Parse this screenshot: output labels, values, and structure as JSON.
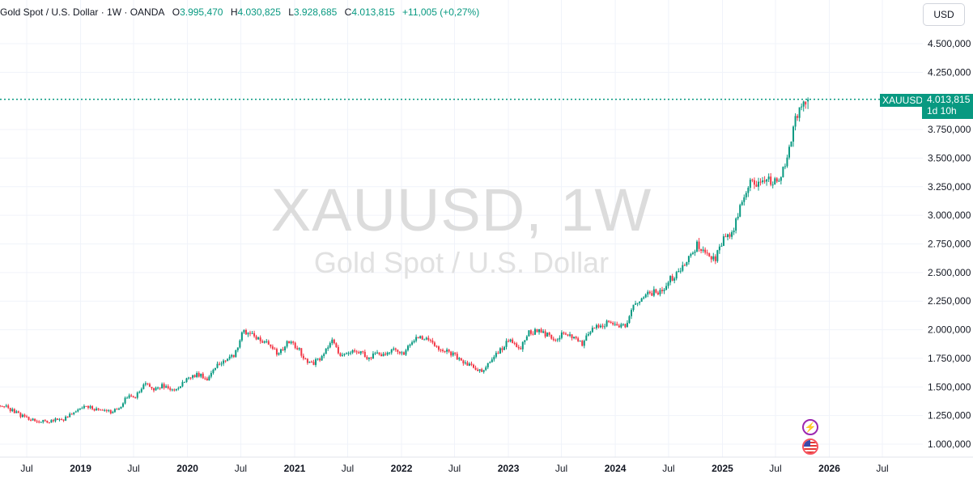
{
  "legend": {
    "symbol": "Gold Spot / U.S. Dollar · 1W · OANDA",
    "open_label": "O",
    "open": "3.995,470",
    "high_label": "H",
    "high": "4.030,825",
    "low_label": "L",
    "low": "3.928,685",
    "close_label": "C",
    "close": "4.013,815",
    "change": "+11,005 (+0,27%)"
  },
  "currency_button": "USD",
  "watermark": {
    "title": "XAUUSD, 1W",
    "subtitle": "Gold Spot / U.S. Dollar"
  },
  "price_label": {
    "symbol": "XAUUSD",
    "price": "4.013,815",
    "countdown": "1d 10h"
  },
  "colors": {
    "up": "#089981",
    "down": "#f23645",
    "grid": "#f0f3fa"
  },
  "icons": [
    "flash-icon",
    "us-flag-icon"
  ],
  "chart_data": {
    "type": "candlestick",
    "interval": "1W",
    "y_ticks": [
      1000000,
      1250000,
      1500000,
      1750000,
      2000000,
      2250000,
      2500000,
      2750000,
      3000000,
      3250000,
      3500000,
      3750000,
      4250000,
      4500000
    ],
    "y_tick_labels": [
      "1.000,000",
      "1.250,000",
      "1.500,000",
      "1.750,000",
      "2.000,000",
      "2.250,000",
      "2.500,000",
      "2.750,000",
      "3.000,000",
      "3.250,000",
      "3.500,000",
      "3.750,000",
      "4.250,000",
      "4.500,000"
    ],
    "ylim": [
      900000,
      4600000
    ],
    "x_ticks": [
      "Jul",
      "2019",
      "Jul",
      "2020",
      "Jul",
      "2021",
      "Jul",
      "2022",
      "Jul",
      "2023",
      "Jul",
      "2024",
      "Jul",
      "2025",
      "Jul",
      "2026",
      "Jul"
    ],
    "x_tick_dates": [
      "2018-07-01",
      "2019-01-01",
      "2019-07-01",
      "2020-01-01",
      "2020-07-01",
      "2021-01-01",
      "2021-07-01",
      "2022-01-01",
      "2022-07-01",
      "2023-01-01",
      "2023-07-01",
      "2024-01-01",
      "2024-07-01",
      "2025-01-01",
      "2025-07-01",
      "2026-01-01",
      "2026-07-01"
    ],
    "last_price": 4013815,
    "series": [
      {
        "date": "2018-04",
        "close": 1340000
      },
      {
        "date": "2018-05",
        "close": 1300000
      },
      {
        "date": "2018-06",
        "close": 1255000
      },
      {
        "date": "2018-07",
        "close": 1225000
      },
      {
        "date": "2018-08",
        "close": 1200000
      },
      {
        "date": "2018-09",
        "close": 1195000
      },
      {
        "date": "2018-10",
        "close": 1215000
      },
      {
        "date": "2018-11",
        "close": 1220000
      },
      {
        "date": "2018-12",
        "close": 1280000
      },
      {
        "date": "2019-01",
        "close": 1320000
      },
      {
        "date": "2019-02",
        "close": 1315000
      },
      {
        "date": "2019-03",
        "close": 1295000
      },
      {
        "date": "2019-04",
        "close": 1280000
      },
      {
        "date": "2019-05",
        "close": 1300000
      },
      {
        "date": "2019-06",
        "close": 1410000
      },
      {
        "date": "2019-07",
        "close": 1420000
      },
      {
        "date": "2019-08",
        "close": 1525000
      },
      {
        "date": "2019-09",
        "close": 1480000
      },
      {
        "date": "2019-10",
        "close": 1510000
      },
      {
        "date": "2019-11",
        "close": 1465000
      },
      {
        "date": "2019-12",
        "close": 1515000
      },
      {
        "date": "2020-01",
        "close": 1585000
      },
      {
        "date": "2020-02",
        "close": 1610000
      },
      {
        "date": "2020-03",
        "close": 1575000
      },
      {
        "date": "2020-04",
        "close": 1690000
      },
      {
        "date": "2020-05",
        "close": 1730000
      },
      {
        "date": "2020-06",
        "close": 1780000
      },
      {
        "date": "2020-07",
        "close": 1980000
      },
      {
        "date": "2020-08",
        "close": 1970000
      },
      {
        "date": "2020-09",
        "close": 1885000
      },
      {
        "date": "2020-10",
        "close": 1880000
      },
      {
        "date": "2020-11",
        "close": 1780000
      },
      {
        "date": "2020-12",
        "close": 1895000
      },
      {
        "date": "2021-01",
        "close": 1850000
      },
      {
        "date": "2021-02",
        "close": 1735000
      },
      {
        "date": "2021-03",
        "close": 1710000
      },
      {
        "date": "2021-04",
        "close": 1770000
      },
      {
        "date": "2021-05",
        "close": 1905000
      },
      {
        "date": "2021-06",
        "close": 1770000
      },
      {
        "date": "2021-07",
        "close": 1815000
      },
      {
        "date": "2021-08",
        "close": 1815000
      },
      {
        "date": "2021-09",
        "close": 1755000
      },
      {
        "date": "2021-10",
        "close": 1785000
      },
      {
        "date": "2021-11",
        "close": 1775000
      },
      {
        "date": "2021-12",
        "close": 1830000
      },
      {
        "date": "2022-01",
        "close": 1795000
      },
      {
        "date": "2022-02",
        "close": 1905000
      },
      {
        "date": "2022-03",
        "close": 1935000
      },
      {
        "date": "2022-04",
        "close": 1895000
      },
      {
        "date": "2022-05",
        "close": 1840000
      },
      {
        "date": "2022-06",
        "close": 1805000
      },
      {
        "date": "2022-07",
        "close": 1765000
      },
      {
        "date": "2022-08",
        "close": 1710000
      },
      {
        "date": "2022-09",
        "close": 1660000
      },
      {
        "date": "2022-10",
        "close": 1635000
      },
      {
        "date": "2022-11",
        "close": 1765000
      },
      {
        "date": "2022-12",
        "close": 1825000
      },
      {
        "date": "2023-01",
        "close": 1925000
      },
      {
        "date": "2023-02",
        "close": 1825000
      },
      {
        "date": "2023-03",
        "close": 1970000
      },
      {
        "date": "2023-04",
        "close": 1990000
      },
      {
        "date": "2023-05",
        "close": 1960000
      },
      {
        "date": "2023-06",
        "close": 1920000
      },
      {
        "date": "2023-07",
        "close": 1965000
      },
      {
        "date": "2023-08",
        "close": 1940000
      },
      {
        "date": "2023-09",
        "close": 1870000
      },
      {
        "date": "2023-10",
        "close": 1985000
      },
      {
        "date": "2023-11",
        "close": 2035000
      },
      {
        "date": "2023-12",
        "close": 2065000
      },
      {
        "date": "2024-01",
        "close": 2040000
      },
      {
        "date": "2024-02",
        "close": 2045000
      },
      {
        "date": "2024-03",
        "close": 2230000
      },
      {
        "date": "2024-04",
        "close": 2290000
      },
      {
        "date": "2024-05",
        "close": 2325000
      },
      {
        "date": "2024-06",
        "close": 2325000
      },
      {
        "date": "2024-07",
        "close": 2445000
      },
      {
        "date": "2024-08",
        "close": 2500000
      },
      {
        "date": "2024-09",
        "close": 2635000
      },
      {
        "date": "2024-10",
        "close": 2745000
      },
      {
        "date": "2024-11",
        "close": 2655000
      },
      {
        "date": "2024-12",
        "close": 2625000
      },
      {
        "date": "2025-01",
        "close": 2800000
      },
      {
        "date": "2025-02",
        "close": 2860000
      },
      {
        "date": "2025-03",
        "close": 3125000
      },
      {
        "date": "2025-04",
        "close": 3290000
      },
      {
        "date": "2025-05",
        "close": 3290000
      },
      {
        "date": "2025-06",
        "close": 3305000
      },
      {
        "date": "2025-07",
        "close": 3290000
      },
      {
        "date": "2025-08",
        "close": 3445000
      },
      {
        "date": "2025-09",
        "close": 3860000
      },
      {
        "date": "2025-10",
        "close": 4010000
      }
    ]
  }
}
